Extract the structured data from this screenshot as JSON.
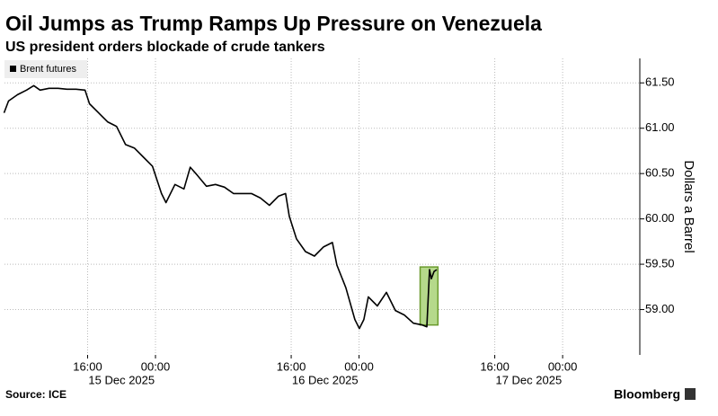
{
  "chart_data": {
    "type": "line",
    "title": "Oil Jumps as Trump Ramps Up Pressure on Venezuela",
    "subtitle": "US president orders blockade of crude tankers",
    "y_axis_label": "Dollars a Barrel",
    "source": "Source: ICE",
    "brand": "Bloomberg",
    "series": [
      {
        "name": "Brent futures",
        "color": "#000000",
        "x": [
          6.15,
          6.68,
          7.74,
          8.8,
          9.65,
          10.39,
          11.45,
          12.51,
          13.57,
          14.63,
          15.69,
          16.22,
          17.29,
          18.35,
          19.41,
          20.47,
          21.53,
          22.59,
          23.65,
          24.71,
          25.24,
          26.3,
          27.36,
          28.1,
          28.95,
          30.01,
          31.07,
          32.13,
          33.19,
          34.25,
          35.31,
          36.37,
          37.43,
          38.49,
          39.34,
          39.77,
          40.62,
          41.68,
          42.74,
          43.8,
          44.86,
          45.39,
          46.45,
          47.51,
          48.04,
          48.57,
          49.1,
          50.16,
          51.22,
          52.28,
          53.34,
          54.4,
          55.46,
          55.99,
          56.31,
          56.52,
          56.84,
          57.16
        ],
        "values": [
          61.17,
          61.3,
          61.37,
          61.42,
          61.47,
          61.42,
          61.44,
          61.44,
          61.43,
          61.43,
          61.42,
          61.27,
          61.17,
          61.07,
          61.02,
          60.82,
          60.78,
          60.68,
          60.58,
          60.28,
          60.18,
          60.38,
          60.33,
          60.57,
          60.48,
          60.36,
          60.38,
          60.35,
          60.28,
          60.28,
          60.28,
          60.23,
          60.15,
          60.25,
          60.28,
          60.03,
          59.78,
          59.64,
          59.59,
          59.69,
          59.74,
          59.49,
          59.24,
          58.89,
          58.79,
          58.89,
          59.14,
          59.04,
          59.19,
          58.99,
          58.94,
          58.85,
          58.83,
          58.81,
          59.44,
          59.34,
          59.42,
          59.44
        ]
      }
    ],
    "highlight": {
      "x": [
        55.2,
        57.3
      ],
      "y": [
        58.83,
        59.47
      ],
      "color": "#b5d98b"
    },
    "xlim": [
      6.2,
      81.1
    ],
    "xticks": [
      {
        "value": 16,
        "label": "16:00"
      },
      {
        "value": 24,
        "label": "00:00"
      },
      {
        "value": 40,
        "label": "16:00"
      },
      {
        "value": 48,
        "label": "00:00"
      },
      {
        "value": 64,
        "label": "16:00"
      },
      {
        "value": 72,
        "label": "00:00"
      }
    ],
    "date_labels": [
      {
        "value": 20,
        "label": "15 Dec 2025"
      },
      {
        "value": 44,
        "label": "16 Dec 2025"
      },
      {
        "value": 68,
        "label": "17 Dec 2025"
      }
    ],
    "ylim": [
      58.5,
      61.77
    ],
    "yticks": [
      {
        "value": 59,
        "label": "59.00"
      },
      {
        "value": 59.5,
        "label": "59.50"
      },
      {
        "value": 60,
        "label": "60.00"
      },
      {
        "value": 60.5,
        "label": "60.50"
      },
      {
        "value": 61,
        "label": "61.00"
      },
      {
        "value": 61.5,
        "label": "61.50"
      }
    ],
    "grid": true,
    "legend": "top-left"
  }
}
